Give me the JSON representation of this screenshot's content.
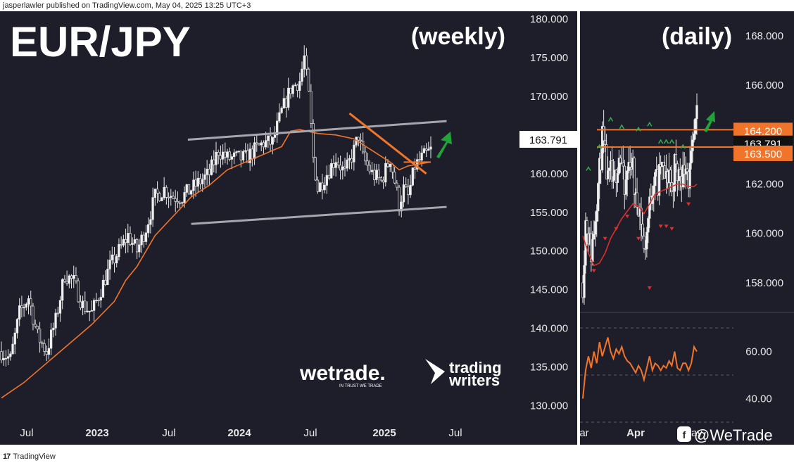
{
  "header": {
    "publisher_line": "jasperlawler published on TradingView.com, May 04, 2025 13:25 UTC+3"
  },
  "footer": {
    "brand": "TradingView",
    "watermark": "@WeTrade"
  },
  "logos": {
    "wetrade": "wetrade.",
    "wetrade_tag": "IN TRUST WE TRADE",
    "trading_writers_line1": "trading",
    "trading_writers_line2": "writers"
  },
  "colors": {
    "background": "#1e1e2a",
    "candle": "#e6e6e6",
    "ma_line": "#f0742a",
    "channel_line": "#a6a6b0",
    "trend_line": "#f0742a",
    "arrow": "#22a33a",
    "label_orange": "#f0742a",
    "label_black": "#111111",
    "up_marker": "#2fae4a",
    "down_marker": "#e0302a"
  },
  "chart_data": [
    {
      "type": "candlestick",
      "title": "EUR/JPY",
      "subtitle": "(weekly)",
      "x_ticks": [
        "Jul",
        "2023",
        "Jul",
        "2024",
        "Jul",
        "2025",
        "Jul"
      ],
      "y_ticks": [
        "130.000",
        "135.000",
        "140.000",
        "145.000",
        "150.000",
        "155.000",
        "160.000",
        "165.000",
        "170.000",
        "175.000",
        "180.000"
      ],
      "ylim": [
        127.5,
        181.0
      ],
      "last_price_label": "163.791",
      "last_price": 163.791,
      "close_path": [
        [
          0,
          137
        ],
        [
          8,
          136
        ],
        [
          16,
          142
        ],
        [
          24,
          144
        ],
        [
          32,
          139
        ],
        [
          40,
          137
        ],
        [
          48,
          141
        ],
        [
          56,
          147
        ],
        [
          64,
          146
        ],
        [
          72,
          143
        ],
        [
          80,
          142
        ],
        [
          88,
          145
        ],
        [
          96,
          148
        ],
        [
          104,
          150
        ],
        [
          112,
          152
        ],
        [
          120,
          150
        ],
        [
          128,
          153
        ],
        [
          136,
          157
        ],
        [
          144,
          158
        ],
        [
          152,
          157
        ],
        [
          160,
          157
        ],
        [
          168,
          158
        ],
        [
          176,
          159
        ],
        [
          184,
          160
        ],
        [
          192,
          163
        ],
        [
          200,
          162
        ],
        [
          208,
          162
        ],
        [
          216,
          162
        ],
        [
          224,
          163
        ],
        [
          232,
          164
        ],
        [
          240,
          164
        ],
        [
          248,
          168
        ],
        [
          256,
          171
        ],
        [
          264,
          172
        ],
        [
          268,
          175
        ],
        [
          272,
          170
        ],
        [
          276,
          162
        ],
        [
          280,
          158
        ],
        [
          288,
          160
        ],
        [
          296,
          162
        ],
        [
          304,
          160
        ],
        [
          312,
          163
        ],
        [
          316,
          165
        ],
        [
          320,
          162
        ],
        [
          328,
          160
        ],
        [
          336,
          159
        ],
        [
          344,
          162
        ],
        [
          352,
          156
        ],
        [
          356,
          158
        ],
        [
          360,
          157
        ],
        [
          366,
          161
        ],
        [
          372,
          162
        ],
        [
          380,
          163
        ]
      ],
      "ma_line": [
        [
          0,
          131
        ],
        [
          20,
          133
        ],
        [
          40,
          135.5
        ],
        [
          60,
          138
        ],
        [
          80,
          140.5
        ],
        [
          100,
          143.5
        ],
        [
          110,
          146.2
        ],
        [
          120,
          148
        ],
        [
          136,
          152
        ],
        [
          152,
          154.5
        ],
        [
          168,
          157
        ],
        [
          184,
          158.5
        ],
        [
          200,
          160.5
        ],
        [
          216,
          161.5
        ],
        [
          232,
          162.5
        ],
        [
          248,
          163.5
        ],
        [
          256,
          165.5
        ],
        [
          264,
          165.7
        ],
        [
          280,
          165.2
        ],
        [
          296,
          165
        ],
        [
          312,
          164.5
        ],
        [
          328,
          163
        ],
        [
          344,
          161.5
        ],
        [
          352,
          160.5
        ],
        [
          360,
          161
        ],
        [
          372,
          161.3
        ],
        [
          380,
          161.5
        ]
      ],
      "channel_upper": [
        [
          165,
          164.4
        ],
        [
          394,
          166.8
        ]
      ],
      "channel_lower": [
        [
          168,
          153.5
        ],
        [
          394,
          155.7
        ]
      ],
      "trend_line": [
        [
          308,
          167.8
        ],
        [
          376,
          160.0
        ]
      ]
    },
    {
      "type": "candlestick",
      "title": "",
      "subtitle": "(daily)",
      "x_ticks": [
        "ar",
        "Apr",
        "ay"
      ],
      "y_ticks": [
        "158.000",
        "160.000",
        "162.000",
        "164.000",
        "166.000",
        "168.000"
      ],
      "ylim": [
        156.8,
        169.0
      ],
      "levels": [
        {
          "label": "164.200",
          "value": 164.2
        },
        {
          "label": "163.500",
          "value": 163.5
        }
      ],
      "last_price_label": "163.791",
      "last_price": 163.791,
      "close_path": [
        [
          0,
          158
        ],
        [
          4,
          160.5
        ],
        [
          8,
          160
        ],
        [
          12,
          159.2
        ],
        [
          16,
          160.2
        ],
        [
          20,
          161.5
        ],
        [
          24,
          162.5
        ],
        [
          28,
          163.8
        ],
        [
          32,
          163
        ],
        [
          36,
          162
        ],
        [
          40,
          162.4
        ],
        [
          44,
          161.8
        ],
        [
          48,
          162.6
        ],
        [
          52,
          163.2
        ],
        [
          56,
          162.8
        ],
        [
          60,
          161.5
        ],
        [
          64,
          162.5
        ],
        [
          68,
          163.1
        ],
        [
          72,
          162.6
        ],
        [
          76,
          161.2
        ],
        [
          80,
          161.3
        ],
        [
          84,
          160.6
        ],
        [
          88,
          159.2
        ],
        [
          92,
          160.1
        ],
        [
          96,
          161.1
        ],
        [
          100,
          162
        ],
        [
          104,
          162.6
        ],
        [
          108,
          161.8
        ],
        [
          112,
          162.8
        ],
        [
          116,
          162.4
        ],
        [
          120,
          162.1
        ],
        [
          124,
          162.6
        ],
        [
          128,
          161.6
        ],
        [
          132,
          162.8
        ],
        [
          136,
          162.3
        ],
        [
          140,
          162.5
        ],
        [
          144,
          162.4
        ],
        [
          148,
          163.1
        ],
        [
          152,
          162.2
        ],
        [
          156,
          162.8
        ],
        [
          160,
          163.8
        ],
        [
          164,
          164.6
        ]
      ],
      "ma_line": [
        [
          0,
          159.9
        ],
        [
          8,
          159.2
        ],
        [
          16,
          158.7
        ],
        [
          24,
          158.8
        ],
        [
          32,
          159.2
        ],
        [
          40,
          159.8
        ],
        [
          48,
          160.2
        ],
        [
          56,
          160.6
        ],
        [
          64,
          160.9
        ],
        [
          72,
          161.2
        ],
        [
          80,
          161.1
        ],
        [
          88,
          160.8
        ],
        [
          96,
          161.2
        ],
        [
          104,
          161.6
        ],
        [
          112,
          161.7
        ],
        [
          120,
          161.8
        ],
        [
          128,
          161.9
        ],
        [
          136,
          162
        ],
        [
          144,
          162
        ],
        [
          152,
          161.9
        ],
        [
          160,
          161.9
        ],
        [
          164,
          162
        ]
      ],
      "up_markers": [
        [
          8,
          162.6
        ],
        [
          24,
          163.5
        ],
        [
          40,
          164.6
        ],
        [
          56,
          164.3
        ],
        [
          80,
          164.2
        ],
        [
          96,
          164.4
        ],
        [
          112,
          163.7
        ],
        [
          120,
          163.7
        ],
        [
          128,
          163.7
        ],
        [
          144,
          163.5
        ]
      ],
      "down_markers": [
        [
          16,
          158.5
        ],
        [
          32,
          159.8
        ],
        [
          48,
          160.2
        ],
        [
          64,
          160.7
        ],
        [
          80,
          159.8
        ],
        [
          96,
          157.8
        ],
        [
          112,
          160.3
        ],
        [
          120,
          160.3
        ],
        [
          128,
          160.2
        ],
        [
          152,
          161.2
        ]
      ],
      "oscillator": {
        "y_ticks": [
          "40.00",
          "60.00"
        ],
        "ylim": [
          30,
          76
        ],
        "levels": [
          70,
          50,
          30
        ],
        "values": [
          [
            0,
            40
          ],
          [
            4,
            52
          ],
          [
            8,
            58
          ],
          [
            12,
            53
          ],
          [
            16,
            60
          ],
          [
            20,
            55
          ],
          [
            24,
            64
          ],
          [
            28,
            58
          ],
          [
            32,
            62
          ],
          [
            36,
            66
          ],
          [
            40,
            60
          ],
          [
            44,
            57
          ],
          [
            48,
            61
          ],
          [
            52,
            59
          ],
          [
            56,
            62
          ],
          [
            60,
            58
          ],
          [
            64,
            56
          ],
          [
            68,
            55
          ],
          [
            72,
            53
          ],
          [
            76,
            51
          ],
          [
            80,
            54
          ],
          [
            84,
            52
          ],
          [
            88,
            48
          ],
          [
            92,
            53
          ],
          [
            96,
            58
          ],
          [
            100,
            52
          ],
          [
            104,
            55
          ],
          [
            108,
            54
          ],
          [
            112,
            52
          ],
          [
            116,
            54
          ],
          [
            120,
            53
          ],
          [
            124,
            56
          ],
          [
            128,
            54
          ],
          [
            132,
            60
          ],
          [
            136,
            53
          ],
          [
            140,
            52
          ],
          [
            144,
            55
          ],
          [
            148,
            55
          ],
          [
            152,
            52
          ],
          [
            156,
            55
          ],
          [
            160,
            62
          ],
          [
            164,
            60
          ]
        ]
      }
    }
  ]
}
